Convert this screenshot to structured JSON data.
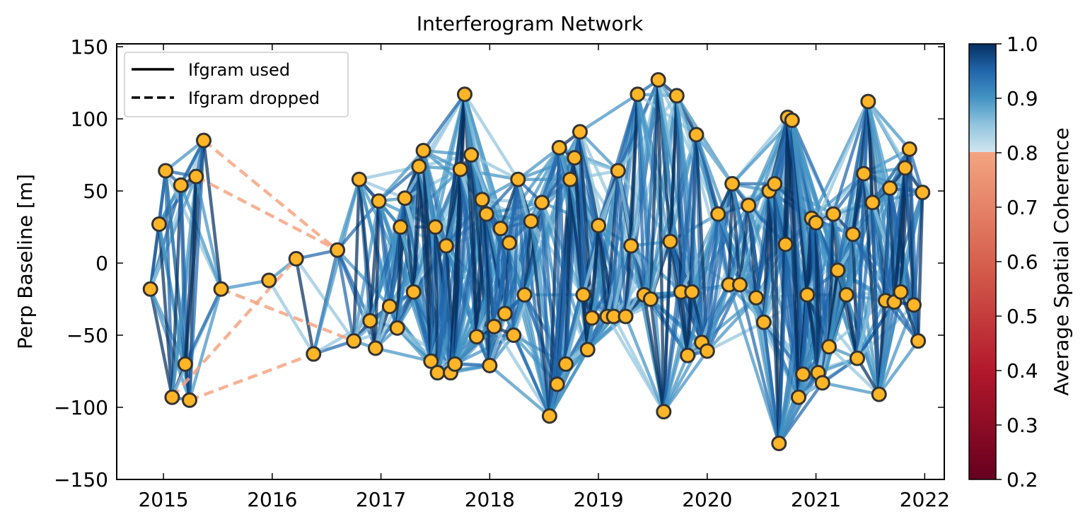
{
  "chart_data": {
    "type": "scatter",
    "title": "Interferogram Network",
    "ylabel": "Perp Baseline [m]",
    "xlabel": "",
    "xlim": [
      2014.57,
      2022.18
    ],
    "ylim": [
      -150,
      152
    ],
    "x_ticks": [
      2015,
      2016,
      2017,
      2018,
      2019,
      2020,
      2021,
      2022
    ],
    "y_ticks": [
      -150,
      -100,
      -50,
      0,
      50,
      100,
      150
    ],
    "x_tick_labels": [
      "2015",
      "2016",
      "2017",
      "2018",
      "2019",
      "2020",
      "2021",
      "2022"
    ],
    "y_tick_labels": [
      "−150",
      "−100",
      "−50",
      "0",
      "50",
      "100",
      "150"
    ],
    "legend": {
      "placement": "top-left",
      "entries": [
        {
          "label": "Ifgram used",
          "style": "solid"
        },
        {
          "label": "Ifgram dropped",
          "style": "dashed"
        }
      ]
    },
    "colorbar": {
      "label": "Average Spatial Coherence",
      "range": [
        0.2,
        1.0
      ],
      "ticks": [
        0.2,
        0.3,
        0.4,
        0.5,
        0.6,
        0.7,
        0.8,
        0.9,
        1.0
      ],
      "tick_labels": [
        "0.2",
        "0.3",
        "0.4",
        "0.5",
        "0.6",
        "0.7",
        "0.8",
        "0.9",
        "1.0"
      ],
      "colormap": "RdBu",
      "stops_below_threshold": [
        "#67001f",
        "#b2182b",
        "#d6604d",
        "#f4a582"
      ],
      "stops_above_threshold": [
        "#d1e5f0",
        "#92c5de",
        "#4393c3",
        "#2166ac",
        "#053061"
      ],
      "threshold": 0.8
    },
    "marker_color": "#ffb526",
    "marker_edge_color": "#333333",
    "acquisitions": [
      {
        "x": 2014.88,
        "y": -18
      },
      {
        "x": 2014.96,
        "y": 27
      },
      {
        "x": 2015.02,
        "y": 64
      },
      {
        "x": 2015.08,
        "y": -93
      },
      {
        "x": 2015.16,
        "y": 54
      },
      {
        "x": 2015.2,
        "y": -70
      },
      {
        "x": 2015.24,
        "y": -95
      },
      {
        "x": 2015.3,
        "y": 60
      },
      {
        "x": 2015.37,
        "y": 85
      },
      {
        "x": 2015.53,
        "y": -18
      },
      {
        "x": 2015.97,
        "y": -12
      },
      {
        "x": 2016.22,
        "y": 3
      },
      {
        "x": 2016.38,
        "y": -63
      },
      {
        "x": 2016.6,
        "y": 9
      },
      {
        "x": 2016.75,
        "y": -54
      },
      {
        "x": 2016.8,
        "y": 58
      },
      {
        "x": 2016.9,
        "y": -40
      },
      {
        "x": 2016.95,
        "y": -59
      },
      {
        "x": 2016.98,
        "y": 43
      },
      {
        "x": 2017.08,
        "y": -30
      },
      {
        "x": 2017.15,
        "y": -45
      },
      {
        "x": 2017.18,
        "y": 25
      },
      {
        "x": 2017.22,
        "y": 45
      },
      {
        "x": 2017.3,
        "y": -20
      },
      {
        "x": 2017.35,
        "y": 67
      },
      {
        "x": 2017.39,
        "y": 78
      },
      {
        "x": 2017.46,
        "y": -68
      },
      {
        "x": 2017.5,
        "y": 25
      },
      {
        "x": 2017.52,
        "y": -76
      },
      {
        "x": 2017.6,
        "y": 12
      },
      {
        "x": 2017.64,
        "y": -76
      },
      {
        "x": 2017.68,
        "y": -70
      },
      {
        "x": 2017.73,
        "y": 65
      },
      {
        "x": 2017.77,
        "y": 117
      },
      {
        "x": 2017.83,
        "y": 75
      },
      {
        "x": 2017.88,
        "y": -51
      },
      {
        "x": 2017.93,
        "y": 44
      },
      {
        "x": 2017.97,
        "y": 34
      },
      {
        "x": 2018.0,
        "y": -71
      },
      {
        "x": 2018.04,
        "y": -44
      },
      {
        "x": 2018.1,
        "y": 24
      },
      {
        "x": 2018.14,
        "y": -35
      },
      {
        "x": 2018.18,
        "y": 14
      },
      {
        "x": 2018.22,
        "y": -50
      },
      {
        "x": 2018.26,
        "y": 58
      },
      {
        "x": 2018.32,
        "y": -22
      },
      {
        "x": 2018.38,
        "y": 29
      },
      {
        "x": 2018.48,
        "y": 42
      },
      {
        "x": 2018.55,
        "y": -106
      },
      {
        "x": 2018.62,
        "y": -84
      },
      {
        "x": 2018.64,
        "y": 80
      },
      {
        "x": 2018.7,
        "y": -70
      },
      {
        "x": 2018.74,
        "y": 58
      },
      {
        "x": 2018.78,
        "y": 73
      },
      {
        "x": 2018.83,
        "y": 91
      },
      {
        "x": 2018.86,
        "y": -22
      },
      {
        "x": 2018.9,
        "y": -60
      },
      {
        "x": 2018.94,
        "y": -38
      },
      {
        "x": 2019.0,
        "y": 26
      },
      {
        "x": 2019.08,
        "y": -37
      },
      {
        "x": 2019.14,
        "y": -37
      },
      {
        "x": 2019.18,
        "y": 64
      },
      {
        "x": 2019.25,
        "y": -37
      },
      {
        "x": 2019.3,
        "y": 12
      },
      {
        "x": 2019.36,
        "y": 117
      },
      {
        "x": 2019.42,
        "y": -22
      },
      {
        "x": 2019.48,
        "y": -25
      },
      {
        "x": 2019.55,
        "y": 127
      },
      {
        "x": 2019.6,
        "y": -103
      },
      {
        "x": 2019.66,
        "y": 15
      },
      {
        "x": 2019.72,
        "y": 116
      },
      {
        "x": 2019.76,
        "y": -20
      },
      {
        "x": 2019.82,
        "y": -64
      },
      {
        "x": 2019.86,
        "y": -20
      },
      {
        "x": 2019.9,
        "y": 89
      },
      {
        "x": 2019.95,
        "y": -55
      },
      {
        "x": 2020.0,
        "y": -61
      },
      {
        "x": 2020.1,
        "y": 34
      },
      {
        "x": 2020.2,
        "y": -15
      },
      {
        "x": 2020.23,
        "y": 55
      },
      {
        "x": 2020.3,
        "y": -15
      },
      {
        "x": 2020.38,
        "y": 40
      },
      {
        "x": 2020.45,
        "y": -24
      },
      {
        "x": 2020.52,
        "y": -41
      },
      {
        "x": 2020.57,
        "y": 50
      },
      {
        "x": 2020.62,
        "y": 55
      },
      {
        "x": 2020.66,
        "y": -125
      },
      {
        "x": 2020.72,
        "y": 13
      },
      {
        "x": 2020.74,
        "y": 101
      },
      {
        "x": 2020.78,
        "y": 99
      },
      {
        "x": 2020.84,
        "y": -93
      },
      {
        "x": 2020.88,
        "y": -77
      },
      {
        "x": 2020.92,
        "y": -22
      },
      {
        "x": 2020.96,
        "y": 31
      },
      {
        "x": 2021.0,
        "y": 28
      },
      {
        "x": 2021.02,
        "y": -76
      },
      {
        "x": 2021.06,
        "y": -83
      },
      {
        "x": 2021.12,
        "y": -58
      },
      {
        "x": 2021.16,
        "y": 34
      },
      {
        "x": 2021.2,
        "y": -5
      },
      {
        "x": 2021.28,
        "y": -22
      },
      {
        "x": 2021.34,
        "y": 20
      },
      {
        "x": 2021.38,
        "y": -66
      },
      {
        "x": 2021.44,
        "y": 62
      },
      {
        "x": 2021.48,
        "y": 112
      },
      {
        "x": 2021.52,
        "y": 42
      },
      {
        "x": 2021.58,
        "y": -91
      },
      {
        "x": 2021.64,
        "y": -26
      },
      {
        "x": 2021.68,
        "y": 52
      },
      {
        "x": 2021.72,
        "y": -27
      },
      {
        "x": 2021.78,
        "y": -20
      },
      {
        "x": 2021.82,
        "y": 66
      },
      {
        "x": 2021.86,
        "y": 79
      },
      {
        "x": 2021.9,
        "y": -29
      },
      {
        "x": 2021.94,
        "y": -54
      },
      {
        "x": 2021.98,
        "y": 49
      }
    ],
    "dropped_pairs": [
      [
        6,
        12
      ],
      [
        7,
        13
      ],
      [
        8,
        13
      ],
      [
        9,
        14
      ],
      [
        3,
        11
      ]
    ],
    "max_pair_span_years": 0.55,
    "grid": false
  }
}
